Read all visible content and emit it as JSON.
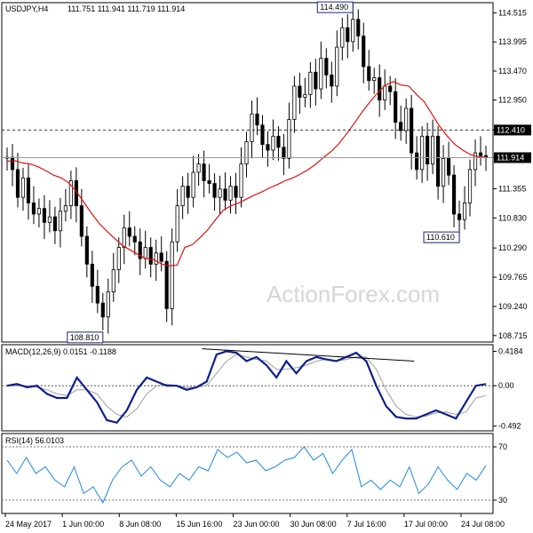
{
  "header": {
    "symbol": "USDJPY,H4",
    "ohlc": "111.751 111.941 111.719 111.914"
  },
  "watermark": "ActionForex.com",
  "chart_data": [
    {
      "type": "candlestick",
      "title": "USDJPY,H4",
      "yticks": [
        "114.515",
        "113.995",
        "113.470",
        "112.950",
        "112.410",
        "111.914",
        "111.355",
        "110.830",
        "110.290",
        "109.765",
        "109.240",
        "108.715"
      ],
      "ylim": [
        108.6,
        114.7
      ],
      "close_series": [
        111.92,
        111.7,
        111.2,
        111.55,
        111.1,
        110.9,
        111.0,
        110.75,
        110.85,
        110.6,
        110.95,
        111.05,
        111.5,
        111.05,
        110.5,
        110.0,
        109.6,
        109.3,
        109.05,
        109.5,
        109.9,
        110.3,
        110.65,
        110.5,
        110.4,
        110.1,
        110.3,
        110.0,
        110.2,
        110.05,
        109.2,
        110.4,
        111.05,
        111.4,
        111.2,
        111.65,
        111.8,
        111.5,
        111.45,
        111.2,
        111.35,
        111.15,
        111.4,
        111.2,
        111.8,
        112.2,
        112.7,
        112.5,
        112.15,
        112.05,
        112.3,
        112.1,
        111.9,
        112.6,
        113.2,
        113.0,
        113.05,
        113.45,
        113.15,
        113.7,
        113.4,
        113.2,
        113.9,
        114.25,
        114.0,
        114.4,
        114.1,
        113.55,
        113.3,
        113.35,
        112.95,
        113.2,
        113.1,
        112.55,
        112.4,
        112.8,
        112.0,
        111.7,
        112.3,
        111.8,
        112.3,
        111.4,
        111.9,
        111.6,
        110.9,
        110.8,
        111.1,
        111.7,
        112.0,
        111.95,
        111.914
      ],
      "ma_series": [
        111.85,
        111.86,
        111.82,
        111.8,
        111.75,
        111.68,
        111.6,
        111.55,
        111.46,
        111.3,
        111.1,
        110.9,
        110.72,
        110.58,
        110.45,
        110.33,
        110.25,
        110.17,
        110.1,
        110.08,
        110.0,
        109.97,
        109.98,
        110.3,
        110.35,
        110.48,
        110.62,
        110.8,
        110.97,
        111.05,
        111.1,
        111.17,
        111.24,
        111.3,
        111.37,
        111.43,
        111.5,
        111.55,
        111.62,
        111.7,
        111.8,
        111.92,
        112.03,
        112.17,
        112.35,
        112.54,
        112.74,
        112.92,
        113.08,
        113.22,
        113.28,
        113.22,
        113.2,
        113.05,
        112.92,
        112.7,
        112.48,
        112.3,
        112.15,
        112.05,
        111.97,
        111.93,
        111.925
      ],
      "annotations": [
        {
          "label": "114.490",
          "value": 114.49
        },
        {
          "label": "108.810",
          "value": 108.81
        },
        {
          "label": "110.610",
          "value": 110.61
        }
      ],
      "hlines": [
        {
          "value": 112.41,
          "style": "dashed",
          "label": "112.410"
        },
        {
          "value": 111.914,
          "style": "solid",
          "label": "111.914"
        }
      ],
      "xticks": [
        "24 May 2017",
        "1 Jun 00:00",
        "8 Jun 08:00",
        "15 Jun 16:00",
        "23 Jun 00:00",
        "30 Jun 08:00",
        "7 Jul 16:00",
        "17 Jul 00:00",
        "24 Jul 08:00"
      ]
    },
    {
      "type": "line",
      "title": "MACD(12,26,9) 0.0151 -0.1188",
      "yticks": [
        "0.4184",
        "0.00",
        "-0.492"
      ],
      "ylim": [
        -0.55,
        0.5
      ],
      "macd": [
        0.0,
        0.02,
        -0.02,
        0.0,
        -0.1,
        -0.15,
        -0.15,
        0.1,
        -0.05,
        -0.2,
        -0.42,
        -0.45,
        -0.3,
        -0.05,
        0.1,
        0.05,
        0.0,
        0.0,
        -0.05,
        -0.02,
        0.05,
        0.38,
        0.42,
        0.4,
        0.3,
        0.35,
        0.25,
        0.1,
        0.3,
        0.15,
        0.3,
        0.35,
        0.32,
        0.3,
        0.35,
        0.4,
        0.3,
        0.0,
        -0.25,
        -0.38,
        -0.4,
        -0.4,
        -0.35,
        -0.3,
        -0.35,
        -0.4,
        -0.2,
        0.0,
        0.02
      ],
      "signal": [
        0.0,
        0.0,
        0.0,
        -0.02,
        -0.05,
        -0.1,
        -0.12,
        -0.05,
        -0.05,
        -0.1,
        -0.25,
        -0.35,
        -0.38,
        -0.28,
        -0.1,
        0.0,
        0.02,
        0.0,
        -0.02,
        -0.02,
        0.0,
        0.15,
        0.3,
        0.38,
        0.35,
        0.32,
        0.3,
        0.2,
        0.2,
        0.22,
        0.25,
        0.3,
        0.32,
        0.3,
        0.32,
        0.35,
        0.35,
        0.2,
        -0.05,
        -0.25,
        -0.35,
        -0.38,
        -0.37,
        -0.33,
        -0.32,
        -0.35,
        -0.32,
        -0.15,
        -0.12
      ],
      "trendline": [
        0.45,
        0.3
      ]
    },
    {
      "type": "line",
      "title": "RSI(14) 56.0103",
      "yticks": [
        "70",
        "30"
      ],
      "ylim": [
        20,
        80
      ],
      "rsi": [
        60,
        50,
        62,
        50,
        55,
        45,
        40,
        55,
        35,
        40,
        28,
        45,
        55,
        60,
        48,
        55,
        45,
        40,
        50,
        45,
        55,
        52,
        68,
        62,
        66,
        58,
        60,
        52,
        55,
        60,
        62,
        70,
        60,
        65,
        50,
        60,
        68,
        40,
        45,
        38,
        45,
        40,
        55,
        35,
        42,
        55,
        45,
        38,
        50,
        45,
        56
      ]
    }
  ]
}
